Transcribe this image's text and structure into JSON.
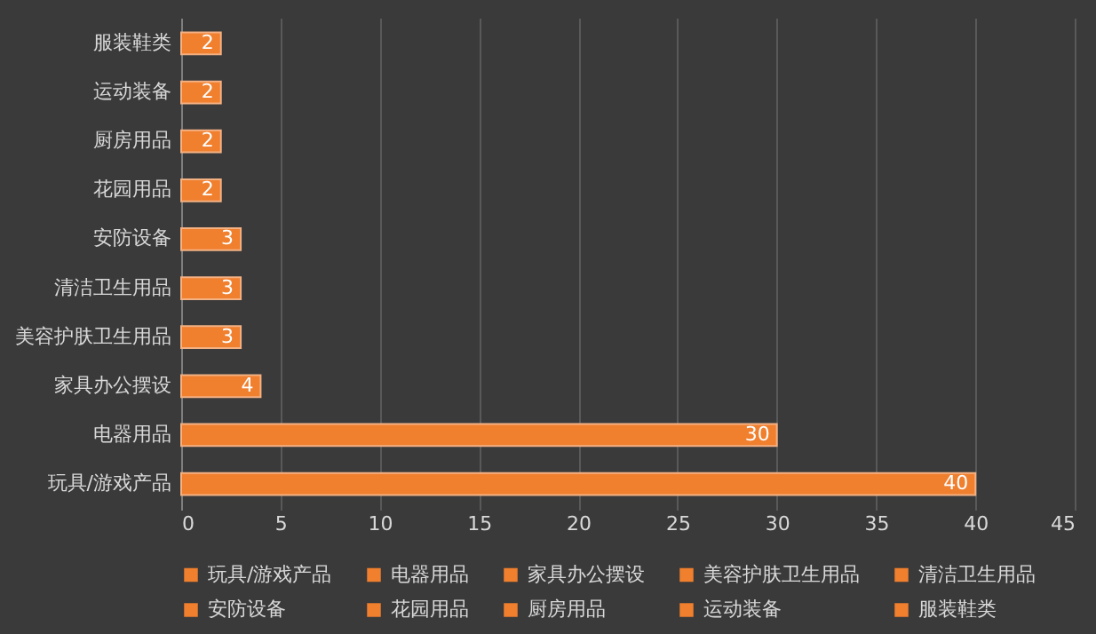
{
  "chart_data": {
    "type": "bar",
    "orientation": "horizontal",
    "categories": [
      "服装鞋类",
      "运动装备",
      "厨房用品",
      "花园用品",
      "安防设备",
      "清洁卫生用品",
      "美容护肤卫生用品",
      "家具办公摆设",
      "电器用品",
      "玩具/游戏产品"
    ],
    "series": [
      {
        "name": "玩具/游戏产品",
        "color": "#f07f2e",
        "values": [
          null,
          null,
          null,
          null,
          null,
          null,
          null,
          null,
          null,
          40
        ]
      },
      {
        "name": "电器用品",
        "color": "#f07f2e",
        "values": [
          null,
          null,
          null,
          null,
          null,
          null,
          null,
          null,
          30,
          null
        ]
      },
      {
        "name": "家具办公摆设",
        "color": "#f07f2e",
        "values": [
          null,
          null,
          null,
          null,
          null,
          null,
          null,
          4,
          null,
          null
        ]
      },
      {
        "name": "美容护肤卫生用品",
        "color": "#f07f2e",
        "values": [
          null,
          null,
          null,
          null,
          null,
          null,
          3,
          null,
          null,
          null
        ]
      },
      {
        "name": "清洁卫生用品",
        "color": "#f07f2e",
        "values": [
          null,
          null,
          null,
          null,
          null,
          3,
          null,
          null,
          null,
          null
        ]
      },
      {
        "name": "安防设备",
        "color": "#f07f2e",
        "values": [
          null,
          null,
          null,
          null,
          3,
          null,
          null,
          null,
          null,
          null
        ]
      },
      {
        "name": "花园用品",
        "color": "#f07f2e",
        "values": [
          null,
          null,
          null,
          2,
          null,
          null,
          null,
          null,
          null,
          null
        ]
      },
      {
        "name": "厨房用品",
        "color": "#f07f2e",
        "values": [
          null,
          null,
          2,
          null,
          null,
          null,
          null,
          null,
          null,
          null
        ]
      },
      {
        "name": "运动装备",
        "color": "#f07f2e",
        "values": [
          null,
          2,
          null,
          null,
          null,
          null,
          null,
          null,
          null,
          null
        ]
      },
      {
        "name": "服装鞋类",
        "color": "#f07f2e",
        "values": [
          2,
          null,
          null,
          null,
          null,
          null,
          null,
          null,
          null,
          null
        ]
      }
    ],
    "xlim": [
      0,
      45
    ],
    "xticks": [
      0,
      5,
      10,
      15,
      20,
      25,
      30,
      35,
      40,
      45
    ],
    "grid": "x",
    "legend": "bottom",
    "data_labels": true
  }
}
